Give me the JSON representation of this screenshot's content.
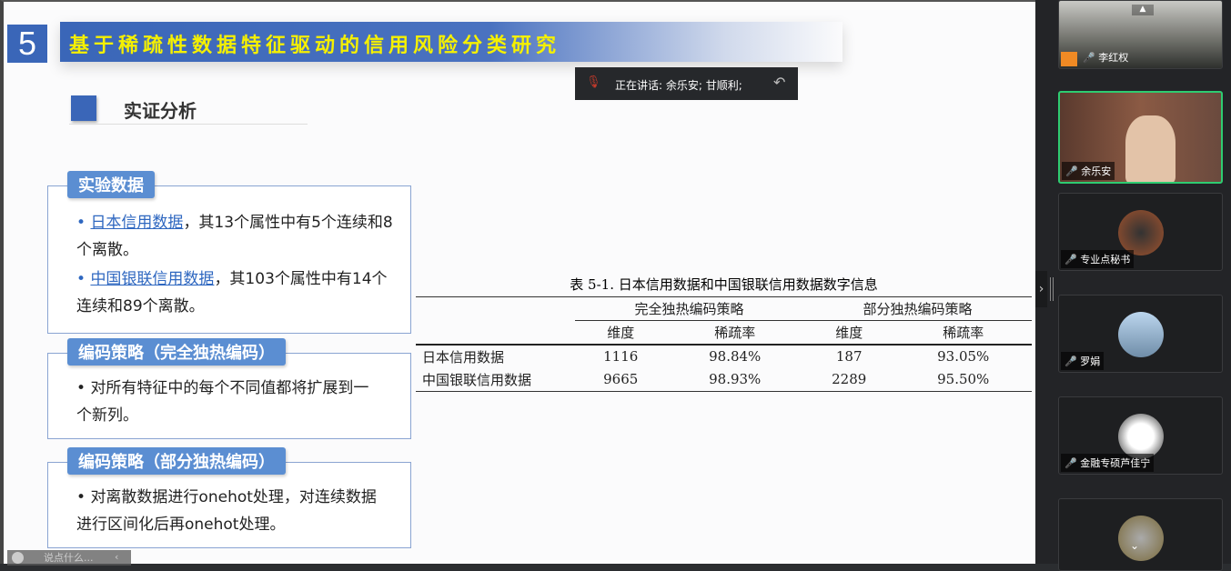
{
  "slide": {
    "section_number": "5",
    "title": "基于稀疏性数据特征驱动的信用风险分类研究",
    "section_heading": "实证分析",
    "boxes": [
      {
        "tag": "实验数据",
        "items": [
          {
            "link": "日本信用数据",
            "text": "，其13个属性中有5个连续和8个离散。"
          },
          {
            "link": "中国银联信用数据",
            "text": "，其103个属性中有14个连续和89个离散。"
          }
        ]
      },
      {
        "tag": "编码策略（完全独热编码）",
        "items": [
          {
            "text": "对所有特征中的每个不同值都将扩展到一个新列。"
          }
        ]
      },
      {
        "tag": "编码策略（部分独热编码）",
        "items": [
          {
            "text": "对离散数据进行onehot处理，对连续数据进行区间化后再onehot处理。"
          }
        ]
      }
    ],
    "table": {
      "caption": "表 5-1.  日本信用数据和中国银联信用数据数字信息",
      "groups": [
        "完全独热编码策略",
        "部分独热编码策略"
      ],
      "subheaders": [
        "维度",
        "稀疏率",
        "维度",
        "稀疏率"
      ],
      "rows": [
        {
          "name": "日本信用数据",
          "values": [
            "1116",
            "98.84%",
            "187",
            "93.05%"
          ]
        },
        {
          "name": "中国银联信用数据",
          "values": [
            "9665",
            "98.93%",
            "2289",
            "95.50%"
          ]
        }
      ]
    }
  },
  "speaking_bar": {
    "text": "正在讲话: 余乐安; 甘顺利;"
  },
  "chat": {
    "placeholder": "说点什么..."
  },
  "participants": [
    {
      "name": "李红权",
      "mic": "on",
      "host": true
    },
    {
      "name": "余乐安",
      "mic": "speaking",
      "active": true
    },
    {
      "name": "专业点秘书",
      "mic": "muted"
    },
    {
      "name": "罗娟",
      "mic": "muted"
    },
    {
      "name": "金融专硕芦佳宁",
      "mic": "muted"
    },
    {
      "name": "",
      "mic": "muted"
    }
  ],
  "colors": {
    "accent": "#3a66b8",
    "title_text": "#f5f000",
    "speaking": "#2ecc71"
  }
}
